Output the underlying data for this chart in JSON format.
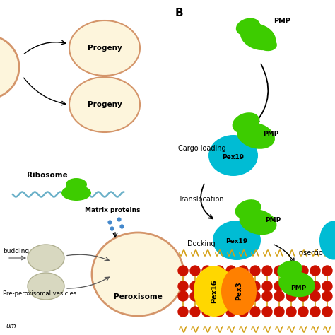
{
  "bg_color": "#ffffff",
  "title_b": "B",
  "label_progeny1": "Progeny",
  "label_progeny2": "Progeny",
  "label_ribosome": "Ribosome",
  "label_matrix": "Matrix proteins",
  "label_budding": "budding",
  "label_pre": "Pre-peroxisomal vesicles",
  "label_peroxisome": "Peroxisome",
  "label_cargo": "Cargo loading",
  "label_translocation": "Translocation",
  "label_docking": "Docking",
  "label_insertion": "Insertio",
  "label_pmp1": "PMP",
  "label_pmp2": "PMP",
  "label_pmp3": "PMP",
  "label_pmp4": "PMP",
  "label_pex19_1": "Pex19",
  "label_pex19_2": "Pex19",
  "label_pex16": "Pex16",
  "label_pex3": "Pex3",
  "color_green": "#3dcc00",
  "color_cyan": "#00bcd4",
  "color_yellow": "#ffd700",
  "color_orange": "#ff8000",
  "color_red": "#cc1100",
  "color_beige_fill": "#fdf5dc",
  "color_beige_border": "#d4956a",
  "color_gray_fill": "#d8d8c0",
  "color_gray_border": "#b0b090",
  "color_mrna": "#6ab0c8",
  "color_dots": "#4488cc",
  "color_tail": "#d4a017"
}
